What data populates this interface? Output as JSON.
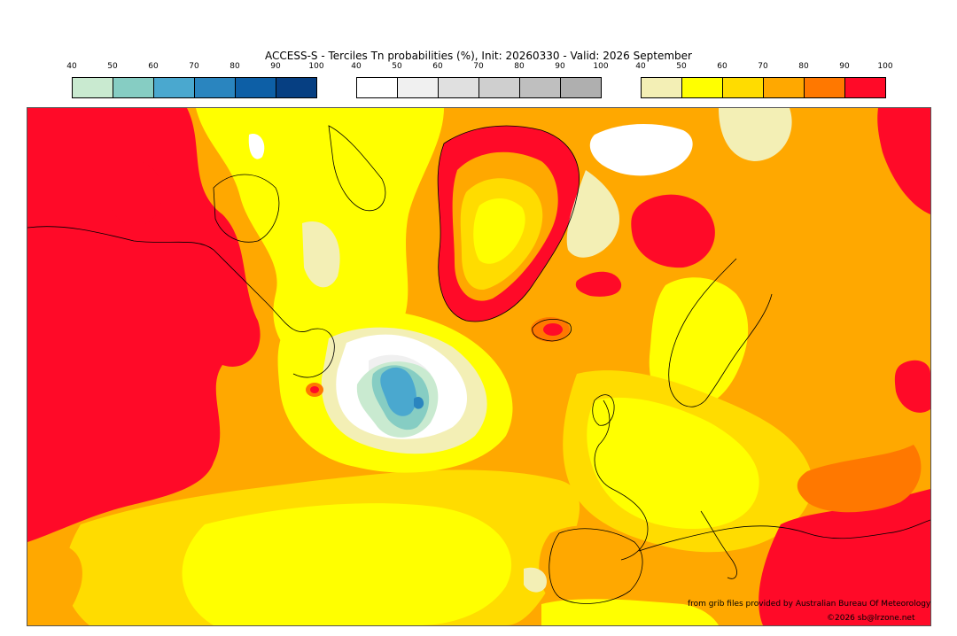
{
  "title": "ACCESS-S - Terciles Tn probabilities (%), Init: 20260330 - Valid: 2026 September",
  "legends": [
    {
      "ticks": [
        "40",
        "50",
        "60",
        "70",
        "80",
        "90",
        "100"
      ],
      "colors": [
        "#c9ead0",
        "#86cdc3",
        "#4aa8cf",
        "#2a85bf",
        "#0d5fa6",
        "#063f82"
      ]
    },
    {
      "ticks": [
        "40",
        "50",
        "60",
        "70",
        "80",
        "90",
        "100"
      ],
      "colors": [
        "#ffffff",
        "#f0f0f0",
        "#e0e0e0",
        "#cfcfcf",
        "#bfbfbf",
        "#afafaf"
      ]
    },
    {
      "ticks": [
        "40",
        "50",
        "60",
        "70",
        "80",
        "90",
        "100"
      ],
      "colors": [
        "#f3efb5",
        "#ffff00",
        "#ffdc00",
        "#ffa800",
        "#ff7800",
        "#ff0a28"
      ]
    }
  ],
  "credit": {
    "source": "from grib files provided by Australian Bureau Of Meteorology",
    "copyright": "©2026 sb@lrzone.net"
  }
}
